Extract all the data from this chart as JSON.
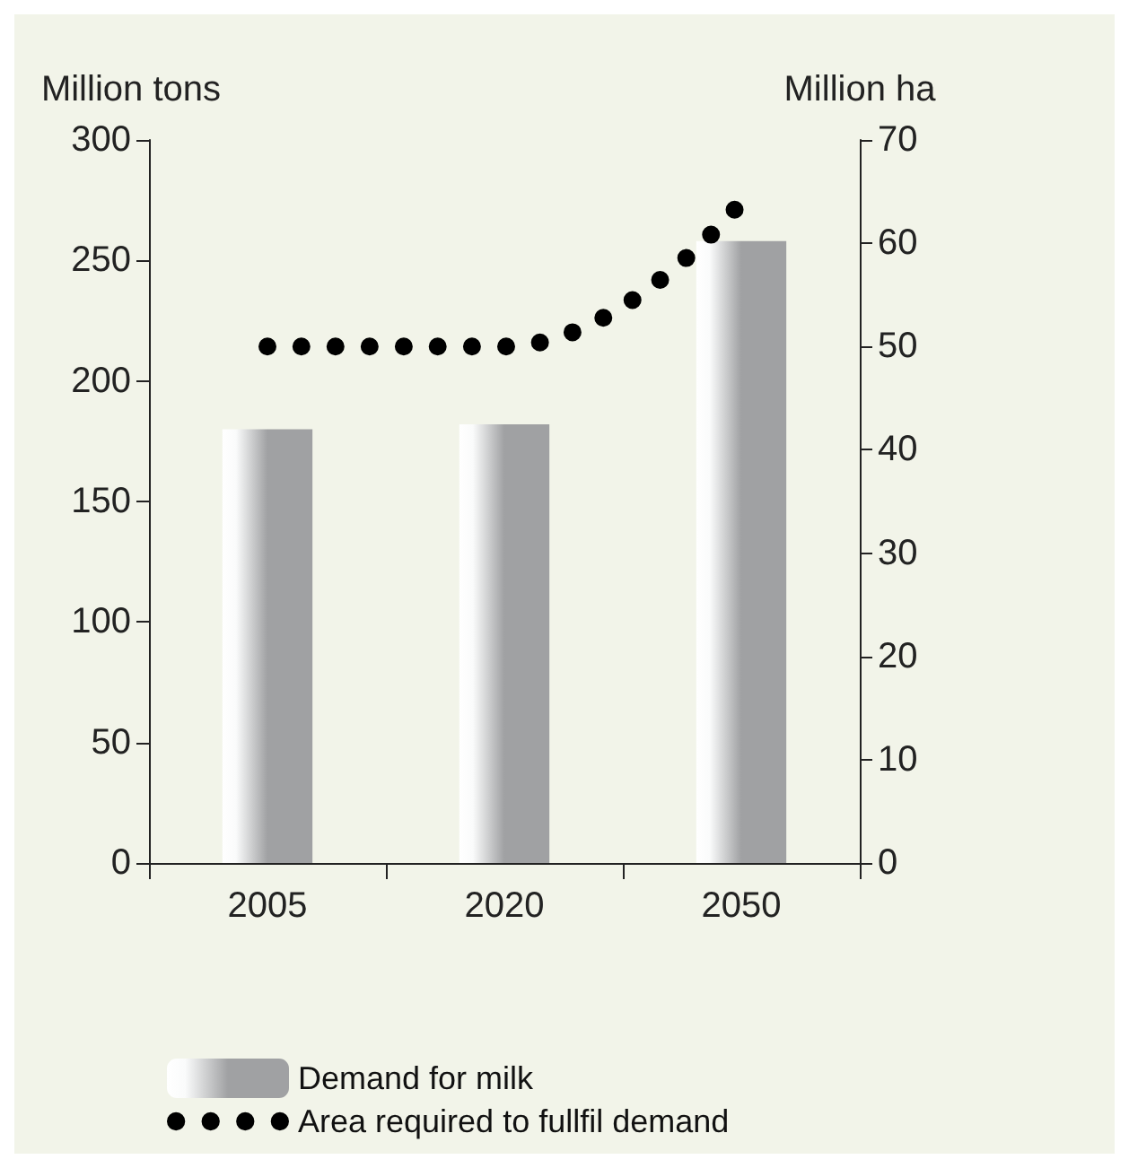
{
  "chart_data": {
    "type": "bar",
    "ylabel": "Million tons",
    "y2label": "Million ha",
    "categories": [
      "2005",
      "2020",
      "2050"
    ],
    "series": [
      {
        "name": "Demand for milk",
        "color": "#a0a1a3",
        "values": [
          180,
          182,
          258
        ]
      },
      {
        "name": "Area required to fullfil demand",
        "type": "line",
        "axis": "y2",
        "color": "#000000",
        "values": [
          50,
          50,
          64
        ],
        "marker": "none",
        "line_style": "dotted"
      }
    ],
    "ylim": [
      0,
      300
    ],
    "yticks": [
      0,
      50,
      100,
      150,
      200,
      250,
      300
    ],
    "y2lim": [
      0,
      70
    ],
    "y2ticks": [
      0,
      10,
      20,
      30,
      40,
      50,
      60,
      70
    ],
    "grid": false,
    "legend": "bottom left"
  }
}
